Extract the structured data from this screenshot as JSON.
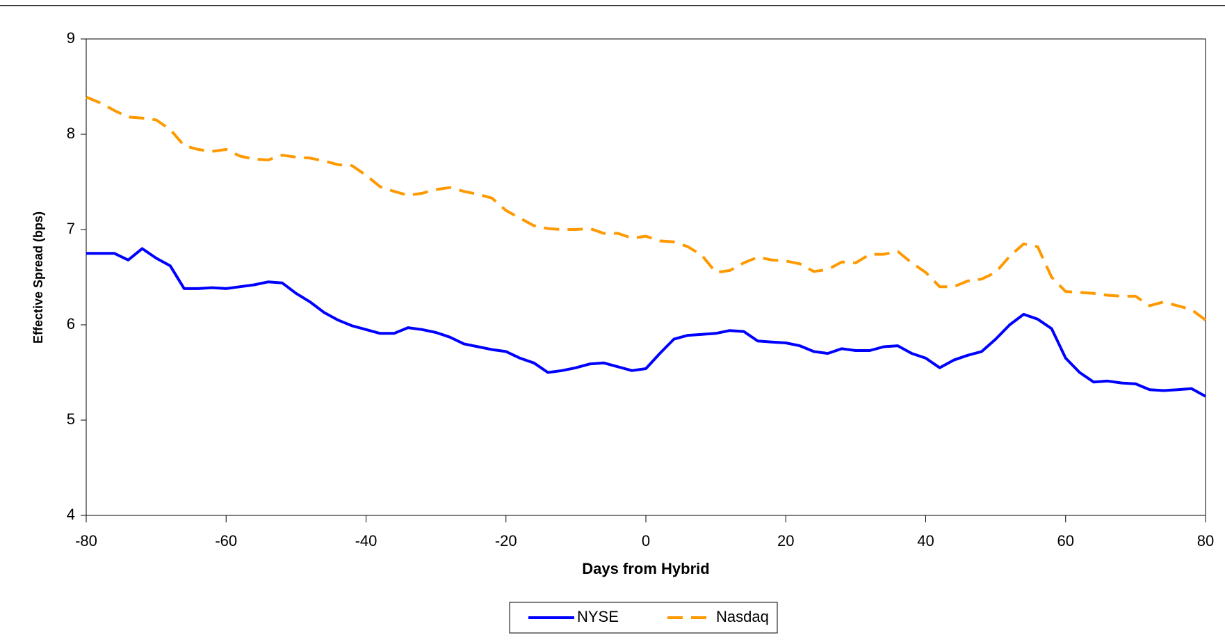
{
  "chart_data": {
    "type": "line",
    "x_label": "Days from Hybrid",
    "y_label": "Effective Spread (bps)",
    "x": [
      -80,
      -78,
      -76,
      -74,
      -72,
      -70,
      -68,
      -66,
      -64,
      -62,
      -60,
      -58,
      -56,
      -54,
      -52,
      -50,
      -48,
      -46,
      -44,
      -42,
      -40,
      -38,
      -36,
      -34,
      -32,
      -30,
      -28,
      -26,
      -24,
      -22,
      -20,
      -18,
      -16,
      -14,
      -12,
      -10,
      -8,
      -6,
      -4,
      -2,
      0,
      2,
      4,
      6,
      8,
      10,
      12,
      14,
      16,
      18,
      20,
      22,
      24,
      26,
      28,
      30,
      32,
      34,
      36,
      38,
      40,
      42,
      44,
      46,
      48,
      50,
      52,
      54,
      56,
      58,
      60,
      62,
      64,
      66,
      68,
      70,
      72,
      74,
      76,
      78,
      80
    ],
    "series": [
      {
        "name": "NYSE",
        "color": "#0000ff",
        "style": "solid",
        "values": [
          6.75,
          6.75,
          6.75,
          6.68,
          6.8,
          6.7,
          6.62,
          6.38,
          6.38,
          6.39,
          6.38,
          6.4,
          6.42,
          6.45,
          6.44,
          6.33,
          6.24,
          6.13,
          6.05,
          5.99,
          5.95,
          5.91,
          5.91,
          5.97,
          5.95,
          5.92,
          5.87,
          5.8,
          5.77,
          5.74,
          5.72,
          5.65,
          5.6,
          5.5,
          5.52,
          5.55,
          5.59,
          5.6,
          5.56,
          5.52,
          5.54,
          5.7,
          5.85,
          5.89,
          5.9,
          5.91,
          5.94,
          5.93,
          5.83,
          5.82,
          5.81,
          5.78,
          5.72,
          5.7,
          5.75,
          5.73,
          5.73,
          5.77,
          5.78,
          5.7,
          5.65,
          5.55,
          5.63,
          5.68,
          5.72,
          5.85,
          6.0,
          6.11,
          6.06,
          5.96,
          5.65,
          5.5,
          5.4,
          5.41,
          5.39,
          5.38,
          5.32,
          5.31,
          5.32,
          5.33,
          5.25
        ]
      },
      {
        "name": "Nasdaq",
        "color": "#ff9900",
        "style": "dashed",
        "values": [
          8.39,
          8.33,
          8.25,
          8.18,
          8.17,
          8.15,
          8.05,
          7.88,
          7.84,
          7.82,
          7.84,
          7.77,
          7.74,
          7.73,
          7.78,
          7.76,
          7.75,
          7.72,
          7.68,
          7.67,
          7.57,
          7.45,
          7.4,
          7.36,
          7.38,
          7.42,
          7.44,
          7.4,
          7.37,
          7.33,
          7.2,
          7.12,
          7.04,
          7.01,
          7.0,
          7.0,
          7.01,
          6.96,
          6.96,
          6.91,
          6.93,
          6.88,
          6.87,
          6.82,
          6.73,
          6.55,
          6.57,
          6.65,
          6.71,
          6.68,
          6.67,
          6.64,
          6.56,
          6.58,
          6.66,
          6.65,
          6.74,
          6.74,
          6.77,
          6.65,
          6.55,
          6.4,
          6.4,
          6.46,
          6.48,
          6.55,
          6.72,
          6.85,
          6.82,
          6.5,
          6.35,
          6.34,
          6.33,
          6.31,
          6.3,
          6.3,
          6.2,
          6.24,
          6.2,
          6.16,
          6.05
        ]
      }
    ],
    "xlim": [
      -80,
      80
    ],
    "xticks": [
      -80,
      -60,
      -40,
      -20,
      0,
      20,
      40,
      60,
      80
    ],
    "ylim": [
      4,
      9
    ],
    "yticks": [
      4,
      5,
      6,
      7,
      8,
      9
    ],
    "grid": false,
    "legend": "bottom"
  }
}
